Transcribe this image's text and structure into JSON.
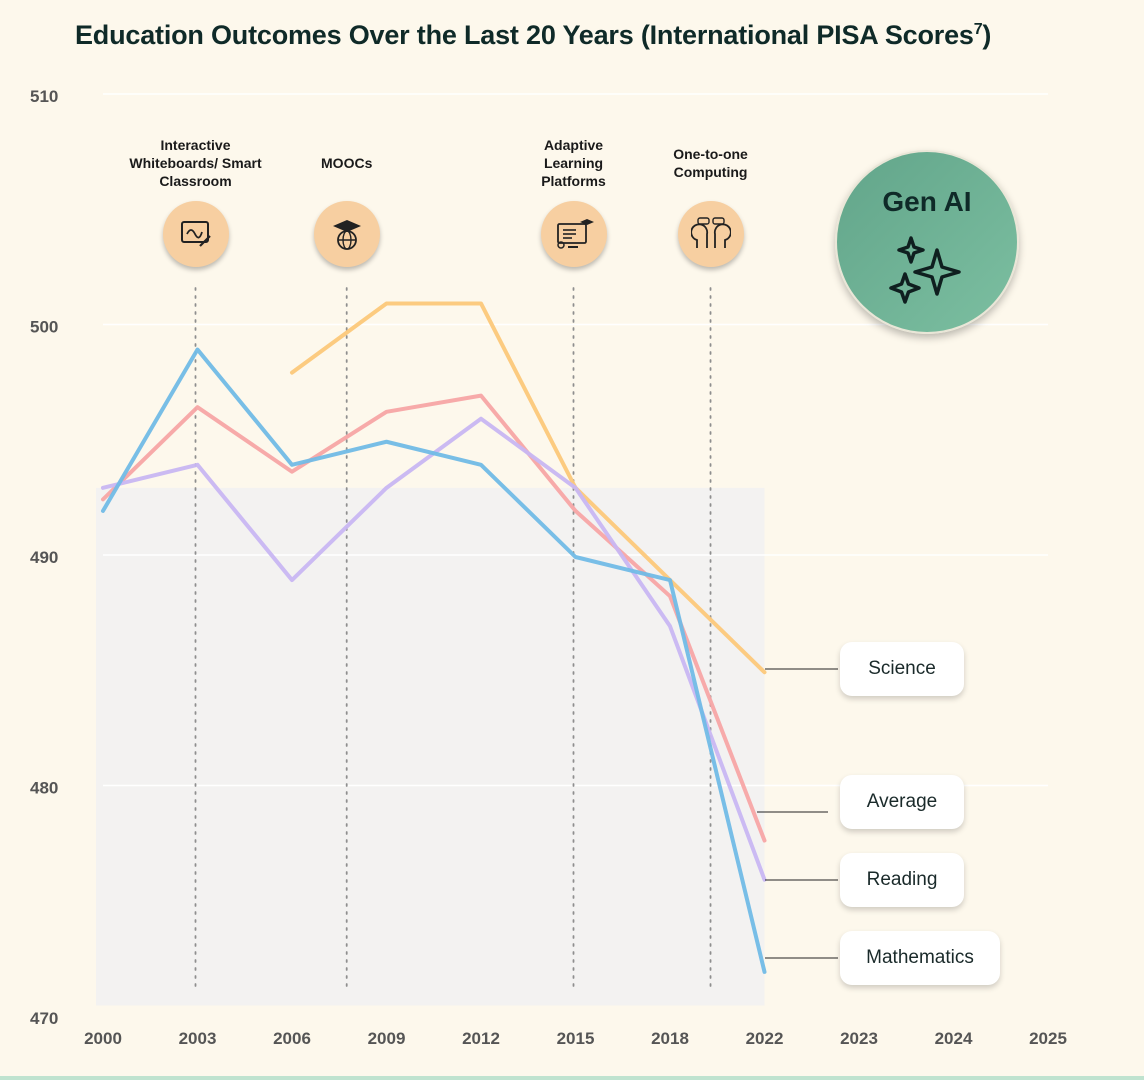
{
  "title": "Education Outcomes Over the Last 20 Years (International PISA Scores",
  "title_sup": "7",
  "title_close": ")",
  "chart_data": {
    "type": "line",
    "title": "Education Outcomes Over the Last 20 Years (International PISA Scores7)",
    "x_categories": [
      "2000",
      "2003",
      "2006",
      "2009",
      "2012",
      "2015",
      "2018",
      "2022",
      "2023",
      "2024",
      "2025"
    ],
    "ylim": [
      470,
      510
    ],
    "y_ticks": [
      470,
      480,
      490,
      500,
      510
    ],
    "series": [
      {
        "name": "Science",
        "color": "#fcc87a",
        "points": [
          [
            2,
            498
          ],
          [
            3,
            501
          ],
          [
            4,
            501
          ],
          [
            5,
            493
          ],
          [
            6,
            489
          ],
          [
            7,
            485
          ]
        ]
      },
      {
        "name": "Average",
        "color": "#f7a5a5",
        "points": [
          [
            0,
            492.5
          ],
          [
            1,
            496.5
          ],
          [
            2,
            493.7
          ],
          [
            3,
            496.3
          ],
          [
            4,
            497
          ],
          [
            5,
            492
          ],
          [
            6,
            488.3
          ],
          [
            7,
            477.7
          ]
        ]
      },
      {
        "name": "Reading",
        "color": "#c8b6f2",
        "points": [
          [
            0,
            493
          ],
          [
            1,
            494
          ],
          [
            2,
            489
          ],
          [
            3,
            493
          ],
          [
            4,
            496
          ],
          [
            5,
            493
          ],
          [
            6,
            487
          ],
          [
            7,
            476
          ]
        ]
      },
      {
        "name": "Mathematics",
        "color": "#71bbe6",
        "points": [
          [
            0,
            492
          ],
          [
            1,
            499
          ],
          [
            2,
            494
          ],
          [
            3,
            495
          ],
          [
            4,
            494
          ],
          [
            5,
            490
          ],
          [
            6,
            489
          ],
          [
            7,
            472
          ]
        ]
      }
    ],
    "annotations": [
      {
        "label": "Interactive Whiteboards/ Smart Classroom",
        "x": 1,
        "icon": "whiteboard-icon"
      },
      {
        "label": "MOOCs",
        "x": 2.6,
        "icon": "graduation-globe-icon"
      },
      {
        "label": "Adaptive Learning Platforms",
        "x": 5,
        "icon": "adaptive-screen-icon"
      },
      {
        "label": "One-to-one Computing",
        "x": 6.45,
        "icon": "two-heads-chat-icon"
      }
    ],
    "highlight": {
      "label": "Gen AI",
      "icon": "sparkles-icon"
    }
  }
}
